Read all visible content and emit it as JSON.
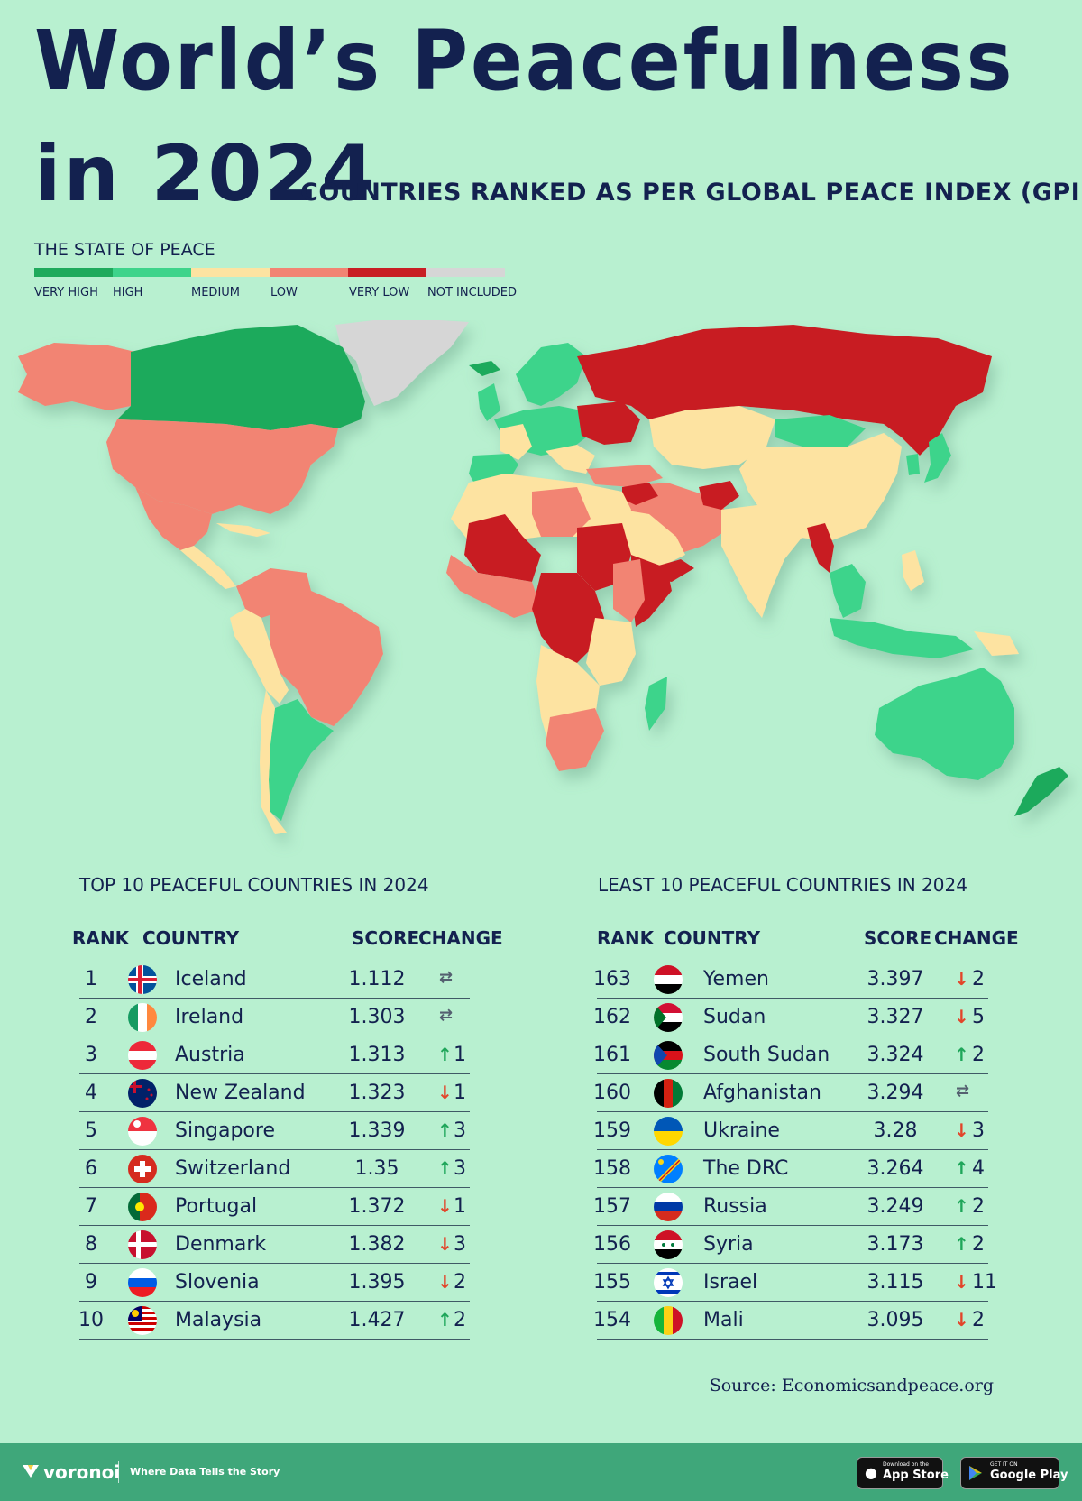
{
  "header": {
    "title_line1": "World’s Peacefulness",
    "title_line2": "in 2024",
    "subtitle": "COUNTRIES RANKED AS PER GLOBAL PEACE INDEX (GPI)"
  },
  "legend": {
    "title": "THE STATE OF PEACE",
    "items": [
      {
        "label": "VERY HIGH",
        "color": "#1faa5c"
      },
      {
        "label": "HIGH",
        "color": "#3ed48b"
      },
      {
        "label": "MEDIUM",
        "color": "#fde3a1"
      },
      {
        "label": "LOW",
        "color": "#f28473"
      },
      {
        "label": "VERY LOW",
        "color": "#c81e24"
      },
      {
        "label": "NOT INCLUDED",
        "color": "#d6d6d6"
      }
    ]
  },
  "chart_data": [
    {
      "type": "table",
      "title": "TOP 10 PEACEFUL COUNTRIES IN 2024",
      "columns": [
        "RANK",
        "COUNTRY",
        "SCORE",
        "CHANGE"
      ],
      "rows": [
        {
          "rank": "1",
          "country": "Iceland",
          "score": "1.112",
          "direction": "same",
          "change": "",
          "flag": "iceland-flag-icon"
        },
        {
          "rank": "2",
          "country": "Ireland",
          "score": "1.303",
          "direction": "same",
          "change": "",
          "flag": "ireland-flag-icon"
        },
        {
          "rank": "3",
          "country": "Austria",
          "score": "1.313",
          "direction": "up",
          "change": "1",
          "flag": "austria-flag-icon"
        },
        {
          "rank": "4",
          "country": "New Zealand",
          "score": "1.323",
          "direction": "down",
          "change": "1",
          "flag": "new-zealand-flag-icon"
        },
        {
          "rank": "5",
          "country": "Singapore",
          "score": "1.339",
          "direction": "up",
          "change": "3",
          "flag": "singapore-flag-icon"
        },
        {
          "rank": "6",
          "country": "Switzerland",
          "score": "1.35",
          "direction": "up",
          "change": "3",
          "flag": "switzerland-flag-icon"
        },
        {
          "rank": "7",
          "country": "Portugal",
          "score": "1.372",
          "direction": "down",
          "change": "1",
          "flag": "portugal-flag-icon"
        },
        {
          "rank": "8",
          "country": "Denmark",
          "score": "1.382",
          "direction": "down",
          "change": "3",
          "flag": "denmark-flag-icon"
        },
        {
          "rank": "9",
          "country": "Slovenia",
          "score": "1.395",
          "direction": "down",
          "change": "2",
          "flag": "slovenia-flag-icon"
        },
        {
          "rank": "10",
          "country": "Malaysia",
          "score": "1.427",
          "direction": "up",
          "change": "2",
          "flag": "malaysia-flag-icon"
        }
      ]
    },
    {
      "type": "table",
      "title": "LEAST 10 PEACEFUL COUNTRIES IN 2024",
      "columns": [
        "RANK",
        "COUNTRY",
        "SCORE",
        "CHANGE"
      ],
      "rows": [
        {
          "rank": "163",
          "country": "Yemen",
          "score": "3.397",
          "direction": "down",
          "change": "2",
          "flag": "yemen-flag-icon"
        },
        {
          "rank": "162",
          "country": "Sudan",
          "score": "3.327",
          "direction": "down",
          "change": "5",
          "flag": "sudan-flag-icon"
        },
        {
          "rank": "161",
          "country": "South Sudan",
          "score": "3.324",
          "direction": "up",
          "change": "2",
          "flag": "south-sudan-flag-icon"
        },
        {
          "rank": "160",
          "country": "Afghanistan",
          "score": "3.294",
          "direction": "same",
          "change": "",
          "flag": "afghanistan-flag-icon"
        },
        {
          "rank": "159",
          "country": "Ukraine",
          "score": "3.28",
          "direction": "down",
          "change": "3",
          "flag": "ukraine-flag-icon"
        },
        {
          "rank": "158",
          "country": "The DRC",
          "score": "3.264",
          "direction": "up",
          "change": "4",
          "flag": "drc-flag-icon"
        },
        {
          "rank": "157",
          "country": "Russia",
          "score": "3.249",
          "direction": "up",
          "change": "2",
          "flag": "russia-flag-icon"
        },
        {
          "rank": "156",
          "country": "Syria",
          "score": "3.173",
          "direction": "up",
          "change": "2",
          "flag": "syria-flag-icon"
        },
        {
          "rank": "155",
          "country": "Israel",
          "score": "3.115",
          "direction": "down",
          "change": "11",
          "flag": "israel-flag-icon"
        },
        {
          "rank": "154",
          "country": "Mali",
          "score": "3.095",
          "direction": "down",
          "change": "2",
          "flag": "mali-flag-icon"
        }
      ]
    }
  ],
  "source": "Source: Economicsandpeace.org",
  "footer": {
    "brand": "voronoi",
    "tagline": "Where Data Tells the Story",
    "appstore_small": "Download on the",
    "appstore_big": "App Store",
    "googleplay_small": "GET IT ON",
    "googleplay_big": "Google Play"
  }
}
